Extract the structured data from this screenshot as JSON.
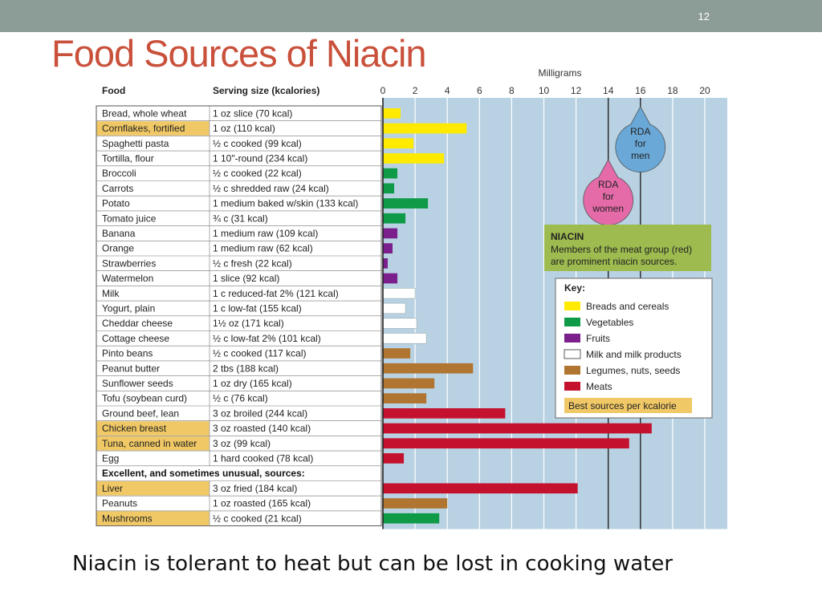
{
  "slide": {
    "number": "12",
    "title": "Food Sources of Niacin",
    "caption": "Niacin is tolerant to heat but can be lost in cooking water"
  },
  "colors": {
    "bg": "#b8d2e3",
    "breads": "#ffea00",
    "vegetables": "#0e9a47",
    "fruits": "#7b1f8c",
    "milk": "#ffffff",
    "legumes": "#b07530",
    "meats": "#c4122e",
    "best": "#f0c866",
    "rda_men": "#6aa8d8",
    "rda_women": "#e46aa8",
    "niacin_box": "#9dbb4f"
  },
  "chart_data": {
    "type": "bar",
    "orientation": "horizontal",
    "unit_label": "Milligrams",
    "xlim": [
      0,
      21
    ],
    "xticks": [
      0,
      2,
      4,
      6,
      8,
      10,
      12,
      14,
      16,
      18,
      20
    ],
    "grid": true,
    "headers": {
      "food": "Food",
      "serving": "Serving size (kcalories)"
    },
    "section_label": "Excellent, and sometimes unusual, sources:",
    "rows": [
      {
        "food": "Bread, whole wheat",
        "serving": "1 oz slice (70 kcal)",
        "value": 1.1,
        "group": "breads",
        "best": false
      },
      {
        "food": "Cornflakes, fortified",
        "serving": "1 oz (110 kcal)",
        "value": 5.2,
        "group": "breads",
        "best": true
      },
      {
        "food": "Spaghetti pasta",
        "serving": "½ c cooked (99 kcal)",
        "value": 1.9,
        "group": "breads",
        "best": false
      },
      {
        "food": "Tortilla, flour",
        "serving": "1 10\"-round (234 kcal)",
        "value": 3.8,
        "group": "breads",
        "best": false
      },
      {
        "food": "Broccoli",
        "serving": "½ c cooked (22 kcal)",
        "value": 0.9,
        "group": "vegetables",
        "best": false
      },
      {
        "food": "Carrots",
        "serving": "½ c shredded raw (24 kcal)",
        "value": 0.7,
        "group": "vegetables",
        "best": false
      },
      {
        "food": "Potato",
        "serving": "1 medium baked w/skin (133 kcal)",
        "value": 2.8,
        "group": "vegetables",
        "best": false
      },
      {
        "food": "Tomato juice",
        "serving": "¾ c (31 kcal)",
        "value": 1.4,
        "group": "vegetables",
        "best": false
      },
      {
        "food": "Banana",
        "serving": "1 medium raw (109 kcal)",
        "value": 0.9,
        "group": "fruits",
        "best": false
      },
      {
        "food": "Orange",
        "serving": "1 medium raw (62 kcal)",
        "value": 0.6,
        "group": "fruits",
        "best": false
      },
      {
        "food": "Strawberries",
        "serving": "½ c fresh (22 kcal)",
        "value": 0.3,
        "group": "fruits",
        "best": false
      },
      {
        "food": "Watermelon",
        "serving": "1 slice (92 kcal)",
        "value": 0.9,
        "group": "fruits",
        "best": false
      },
      {
        "food": "Milk",
        "serving": "1 c reduced-fat 2% (121 kcal)",
        "value": 2.0,
        "group": "milk",
        "best": false
      },
      {
        "food": "Yogurt, plain",
        "serving": "1 c low-fat (155 kcal)",
        "value": 1.4,
        "group": "milk",
        "best": false
      },
      {
        "food": "Cheddar cheese",
        "serving": "1½ oz (171 kcal)",
        "value": 2.1,
        "group": "milk",
        "best": false
      },
      {
        "food": "Cottage cheese",
        "serving": "½ c low-fat 2% (101 kcal)",
        "value": 2.7,
        "group": "milk",
        "best": false
      },
      {
        "food": "Pinto beans",
        "serving": "½ c cooked (117 kcal)",
        "value": 1.7,
        "group": "legumes",
        "best": false
      },
      {
        "food": "Peanut butter",
        "serving": "2 tbs (188 kcal)",
        "value": 5.6,
        "group": "legumes",
        "best": false
      },
      {
        "food": "Sunflower seeds",
        "serving": "1 oz dry (165 kcal)",
        "value": 3.2,
        "group": "legumes",
        "best": false
      },
      {
        "food": "Tofu (soybean curd)",
        "serving": "½ c (76 kcal)",
        "value": 2.7,
        "group": "legumes",
        "best": false
      },
      {
        "food": "Ground beef, lean",
        "serving": "3 oz broiled (244 kcal)",
        "value": 7.6,
        "group": "meats",
        "best": false
      },
      {
        "food": "Chicken breast",
        "serving": "3 oz roasted (140 kcal)",
        "value": 16.7,
        "group": "meats",
        "best": true
      },
      {
        "food": "Tuna, canned in water",
        "serving": "3 oz (99 kcal)",
        "value": 15.3,
        "group": "meats",
        "best": true
      },
      {
        "food": "Egg",
        "serving": "1 hard cooked (78 kcal)",
        "value": 1.3,
        "group": "meats",
        "best": false
      },
      {
        "section": true
      },
      {
        "food": "Liver",
        "serving": "3 oz fried (184 kcal)",
        "value": 12.1,
        "group": "meats",
        "best": true
      },
      {
        "food": "Peanuts",
        "serving": "1 oz roasted (165 kcal)",
        "value": 4.0,
        "group": "legumes",
        "best": false
      },
      {
        "food": "Mushrooms",
        "serving": "½ c cooked (21 kcal)",
        "value": 3.5,
        "group": "vegetables",
        "best": true
      }
    ],
    "rda_men": {
      "value": 16,
      "label": [
        "RDA",
        "for",
        "men"
      ]
    },
    "rda_women": {
      "value": 14,
      "label": [
        "RDA",
        "for",
        "women"
      ]
    },
    "niacin_note": {
      "title": "NIACIN",
      "lines": [
        "Members of the meat group (red)",
        "are prominent niacin sources."
      ]
    },
    "key": {
      "title": "Key:",
      "items": [
        {
          "group": "breads",
          "label": "Breads and cereals"
        },
        {
          "group": "vegetables",
          "label": "Vegetables"
        },
        {
          "group": "fruits",
          "label": "Fruits"
        },
        {
          "group": "milk",
          "label": "Milk and milk products"
        },
        {
          "group": "legumes",
          "label": "Legumes, nuts, seeds"
        },
        {
          "group": "meats",
          "label": "Meats"
        }
      ],
      "best_label": "Best sources per kcalorie"
    }
  }
}
